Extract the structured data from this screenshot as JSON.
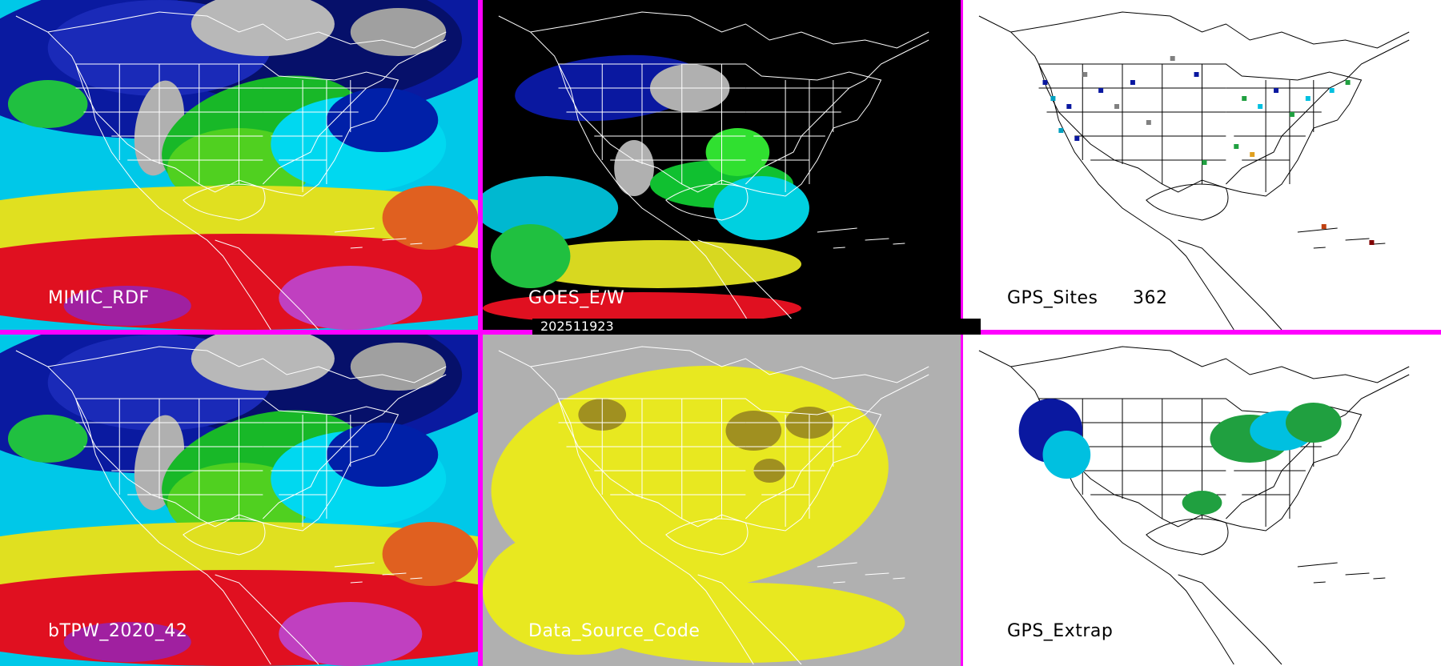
{
  "timestamp": "202511923",
  "colors": {
    "border": "#ff00ff",
    "sat_black": "#000000",
    "data_gray": "#b0b0b0",
    "white_bg": "#ffffff"
  },
  "panels": [
    {
      "id": "mimic-rdf",
      "label": "MIMIC_RDF",
      "style": "tpw",
      "label_color": "#ffffff"
    },
    {
      "id": "goes-ew",
      "label": "GOES_E/W",
      "style": "goes",
      "label_color": "#ffffff"
    },
    {
      "id": "gps-sites",
      "label": "GPS_Sites",
      "count": "362",
      "style": "gps",
      "label_color": "#000000"
    },
    {
      "id": "btpw",
      "label": "bTPW_2020_42",
      "style": "tpw",
      "label_color": "#ffffff"
    },
    {
      "id": "data-source",
      "label": "Data_Source_Code",
      "style": "source",
      "label_color": "#ffffff"
    },
    {
      "id": "gps-extrap",
      "label": "GPS_Extrap",
      "style": "extrap",
      "label_color": "#000000"
    }
  ]
}
